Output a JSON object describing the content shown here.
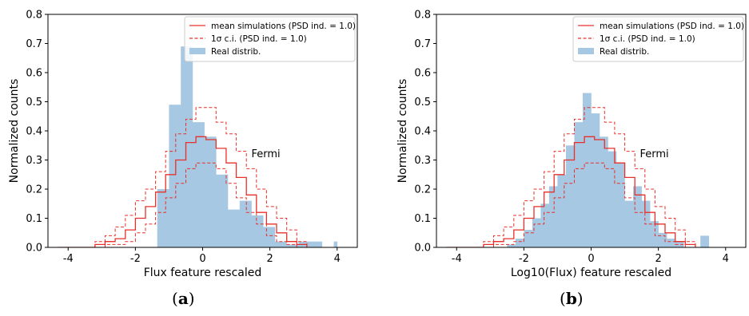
{
  "figure": {
    "captions": [
      {
        "open": "(",
        "letter": "a",
        "close": ")"
      },
      {
        "open": "(",
        "letter": "b",
        "close": ")"
      }
    ]
  },
  "colors": {
    "sim_line": "#e8302a",
    "hist_fill": "#a6c8e2"
  },
  "chart_data": [
    {
      "type": "bar",
      "xlabel": "Flux feature rescaled",
      "ylabel": "Normalized counts",
      "xlim": [
        -4.6,
        4.6
      ],
      "ylim": [
        0,
        0.8
      ],
      "xticks": [
        -4,
        -2,
        0,
        2,
        4
      ],
      "yticks": [
        0.0,
        0.1,
        0.2,
        0.3,
        0.4,
        0.5,
        0.6,
        0.7,
        0.8
      ],
      "annotation": {
        "text": "Fermi",
        "x": 1.45,
        "y": 0.31
      },
      "legend": {
        "position": "top-right",
        "entries": [
          {
            "label": "mean simulations (PSD ind. = 1.0)",
            "style": "solid-line"
          },
          {
            "label": "1σ c.i. (PSD ind. = 1.0)",
            "style": "dashed-line"
          },
          {
            "label": "Real distrib.",
            "style": "patch"
          }
        ]
      },
      "series": [
        {
          "kind": "histogram",
          "edges": [
            -1.35,
            -1.0,
            -0.65,
            -0.3,
            0.05,
            0.4,
            0.75,
            1.1,
            1.45,
            1.8,
            2.15,
            2.5,
            2.85,
            3.2,
            3.55,
            3.9,
            4.0
          ],
          "values": [
            0.2,
            0.49,
            0.69,
            0.43,
            0.38,
            0.25,
            0.13,
            0.16,
            0.11,
            0.07,
            0.02,
            0.01,
            0.02,
            0.02,
            0.0,
            0.02
          ]
        },
        {
          "kind": "step",
          "style": "solid",
          "edges": [
            -4.3,
            -3.2,
            -2.9,
            -2.6,
            -2.3,
            -2.0,
            -1.7,
            -1.4,
            -1.1,
            -0.8,
            -0.5,
            -0.2,
            0.1,
            0.4,
            0.7,
            1.0,
            1.3,
            1.6,
            1.9,
            2.2,
            2.5,
            2.8,
            3.1
          ],
          "values": [
            0.0,
            0.01,
            0.02,
            0.03,
            0.06,
            0.1,
            0.14,
            0.19,
            0.25,
            0.3,
            0.36,
            0.38,
            0.37,
            0.34,
            0.29,
            0.24,
            0.18,
            0.12,
            0.08,
            0.05,
            0.02,
            0.01
          ]
        },
        {
          "kind": "step",
          "style": "dashed",
          "edges": [
            -4.3,
            -3.2,
            -2.9,
            -2.6,
            -2.3,
            -2.0,
            -1.7,
            -1.4,
            -1.1,
            -0.8,
            -0.5,
            -0.2,
            0.1,
            0.4,
            0.7,
            1.0,
            1.3,
            1.6,
            1.9,
            2.2,
            2.5,
            2.8,
            3.1
          ],
          "values": [
            0.0,
            0.02,
            0.04,
            0.07,
            0.11,
            0.16,
            0.2,
            0.26,
            0.33,
            0.39,
            0.44,
            0.48,
            0.48,
            0.43,
            0.39,
            0.33,
            0.27,
            0.2,
            0.14,
            0.1,
            0.06,
            0.02
          ]
        },
        {
          "kind": "step",
          "style": "dashed",
          "edges": [
            -4.3,
            -3.2,
            -2.9,
            -2.6,
            -2.3,
            -2.0,
            -1.7,
            -1.4,
            -1.1,
            -0.8,
            -0.5,
            -0.2,
            0.1,
            0.4,
            0.7,
            1.0,
            1.3,
            1.6,
            1.9,
            2.2,
            2.5,
            2.8,
            3.1
          ],
          "values": [
            0.0,
            0.0,
            0.01,
            0.01,
            0.02,
            0.05,
            0.08,
            0.12,
            0.17,
            0.22,
            0.27,
            0.29,
            0.29,
            0.27,
            0.22,
            0.17,
            0.12,
            0.08,
            0.04,
            0.02,
            0.01,
            0.0
          ]
        }
      ]
    },
    {
      "type": "bar",
      "xlabel": "Log10(Flux) feature rescaled",
      "ylabel": "Normalized counts",
      "xlim": [
        -4.6,
        4.6
      ],
      "ylim": [
        0,
        0.8
      ],
      "xticks": [
        -4,
        -2,
        0,
        2,
        4
      ],
      "yticks": [
        0.0,
        0.1,
        0.2,
        0.3,
        0.4,
        0.5,
        0.6,
        0.7,
        0.8
      ],
      "annotation": {
        "text": "Fermi",
        "x": 1.45,
        "y": 0.31
      },
      "legend": {
        "position": "top-right",
        "entries": [
          {
            "label": "mean simulations (PSD ind. = 1.0)",
            "style": "solid-line"
          },
          {
            "label": "1σ c.i. (PSD ind. = 1.0)",
            "style": "dashed-line"
          },
          {
            "label": "Real distrib.",
            "style": "patch"
          }
        ]
      },
      "series": [
        {
          "kind": "histogram",
          "edges": [
            -2.5,
            -2.25,
            -2.0,
            -1.75,
            -1.5,
            -1.25,
            -1.0,
            -0.75,
            -0.5,
            -0.25,
            0.0,
            0.25,
            0.5,
            0.75,
            1.0,
            1.25,
            1.5,
            1.75,
            2.0,
            2.25,
            2.5,
            2.75,
            3.0,
            3.25,
            3.5
          ],
          "values": [
            0.01,
            0.03,
            0.06,
            0.1,
            0.15,
            0.21,
            0.25,
            0.35,
            0.43,
            0.53,
            0.46,
            0.38,
            0.33,
            0.29,
            0.16,
            0.21,
            0.16,
            0.09,
            0.05,
            0.03,
            0.02,
            0.0,
            0.0,
            0.04
          ]
        },
        {
          "kind": "step",
          "style": "solid",
          "edges": [
            -4.3,
            -3.2,
            -2.9,
            -2.6,
            -2.3,
            -2.0,
            -1.7,
            -1.4,
            -1.1,
            -0.8,
            -0.5,
            -0.2,
            0.1,
            0.4,
            0.7,
            1.0,
            1.3,
            1.6,
            1.9,
            2.2,
            2.5,
            2.8,
            3.1
          ],
          "values": [
            0.0,
            0.01,
            0.02,
            0.03,
            0.06,
            0.1,
            0.14,
            0.19,
            0.25,
            0.3,
            0.36,
            0.38,
            0.37,
            0.34,
            0.29,
            0.24,
            0.18,
            0.12,
            0.08,
            0.05,
            0.02,
            0.01
          ]
        },
        {
          "kind": "step",
          "style": "dashed",
          "edges": [
            -4.3,
            -3.2,
            -2.9,
            -2.6,
            -2.3,
            -2.0,
            -1.7,
            -1.4,
            -1.1,
            -0.8,
            -0.5,
            -0.2,
            0.1,
            0.4,
            0.7,
            1.0,
            1.3,
            1.6,
            1.9,
            2.2,
            2.5,
            2.8,
            3.1
          ],
          "values": [
            0.0,
            0.02,
            0.04,
            0.07,
            0.11,
            0.16,
            0.2,
            0.26,
            0.33,
            0.39,
            0.44,
            0.48,
            0.48,
            0.43,
            0.39,
            0.33,
            0.27,
            0.2,
            0.14,
            0.1,
            0.06,
            0.02
          ]
        },
        {
          "kind": "step",
          "style": "dashed",
          "edges": [
            -4.3,
            -3.2,
            -2.9,
            -2.6,
            -2.3,
            -2.0,
            -1.7,
            -1.4,
            -1.1,
            -0.8,
            -0.5,
            -0.2,
            0.1,
            0.4,
            0.7,
            1.0,
            1.3,
            1.6,
            1.9,
            2.2,
            2.5,
            2.8,
            3.1
          ],
          "values": [
            0.0,
            0.0,
            0.01,
            0.01,
            0.02,
            0.05,
            0.08,
            0.12,
            0.17,
            0.22,
            0.27,
            0.29,
            0.29,
            0.27,
            0.22,
            0.17,
            0.12,
            0.08,
            0.04,
            0.02,
            0.01,
            0.0
          ]
        }
      ]
    }
  ]
}
